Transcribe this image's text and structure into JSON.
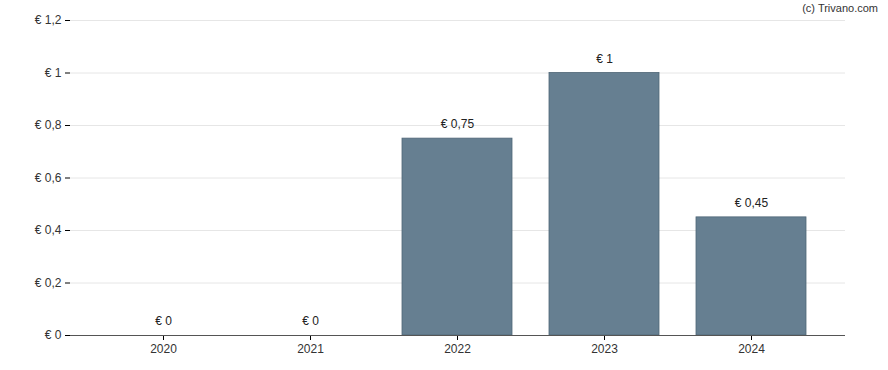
{
  "chart_data": {
    "type": "bar",
    "categories": [
      "2020",
      "2021",
      "2022",
      "2023",
      "2024"
    ],
    "values": [
      0,
      0,
      0.75,
      1,
      0.45
    ],
    "value_labels": [
      "€ 0",
      "€ 0",
      "€ 0,75",
      "€ 1",
      "€ 0,45"
    ],
    "data_labels": true,
    "color": "#667f91",
    "ylim": [
      0,
      1.2
    ],
    "yticks": [
      {
        "value": 0,
        "label": "€ 0"
      },
      {
        "value": 0.2,
        "label": "€ 0,2"
      },
      {
        "value": 0.4,
        "label": "€ 0,4"
      },
      {
        "value": 0.6,
        "label": "€ 0,6"
      },
      {
        "value": 0.8,
        "label": "€ 0,8"
      },
      {
        "value": 1,
        "label": "€ 1"
      },
      {
        "value": 1.2,
        "label": "€ 1,2"
      }
    ],
    "grid": true,
    "annotations": [
      "(c) Trivano.com"
    ]
  }
}
